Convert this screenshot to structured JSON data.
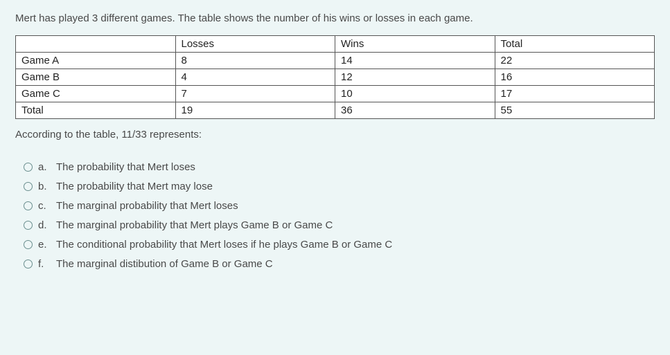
{
  "question_intro": "Mert has played 3 different games. The table shows the number of his wins or losses in each game.",
  "table": {
    "columns": [
      "",
      "Losses",
      "Wins",
      "Total"
    ],
    "rows": [
      [
        "Game A",
        "8",
        "14",
        "22"
      ],
      [
        "Game B",
        "4",
        "12",
        "16"
      ],
      [
        "Game C",
        "7",
        "10",
        "17"
      ],
      [
        "Total",
        "19",
        "36",
        "55"
      ]
    ],
    "border_color": "#555555",
    "background_color": "#ffffff",
    "text_color": "#222222"
  },
  "sub_question": "According to the table, 11/33 represents:",
  "options": [
    {
      "letter": "a.",
      "text": "The probability that Mert loses"
    },
    {
      "letter": "b.",
      "text": "The probability that Mert may lose"
    },
    {
      "letter": "c.",
      "text": "The marginal probability that Mert loses"
    },
    {
      "letter": "d.",
      "text": "The marginal probability that Mert plays Game B or Game C"
    },
    {
      "letter": "e.",
      "text": "The conditional probability that Mert loses if he plays Game B or Game C"
    },
    {
      "letter": "f.",
      "text": "The marginal distibution of Game B or Game C"
    }
  ],
  "page_background": "#edf6f6"
}
